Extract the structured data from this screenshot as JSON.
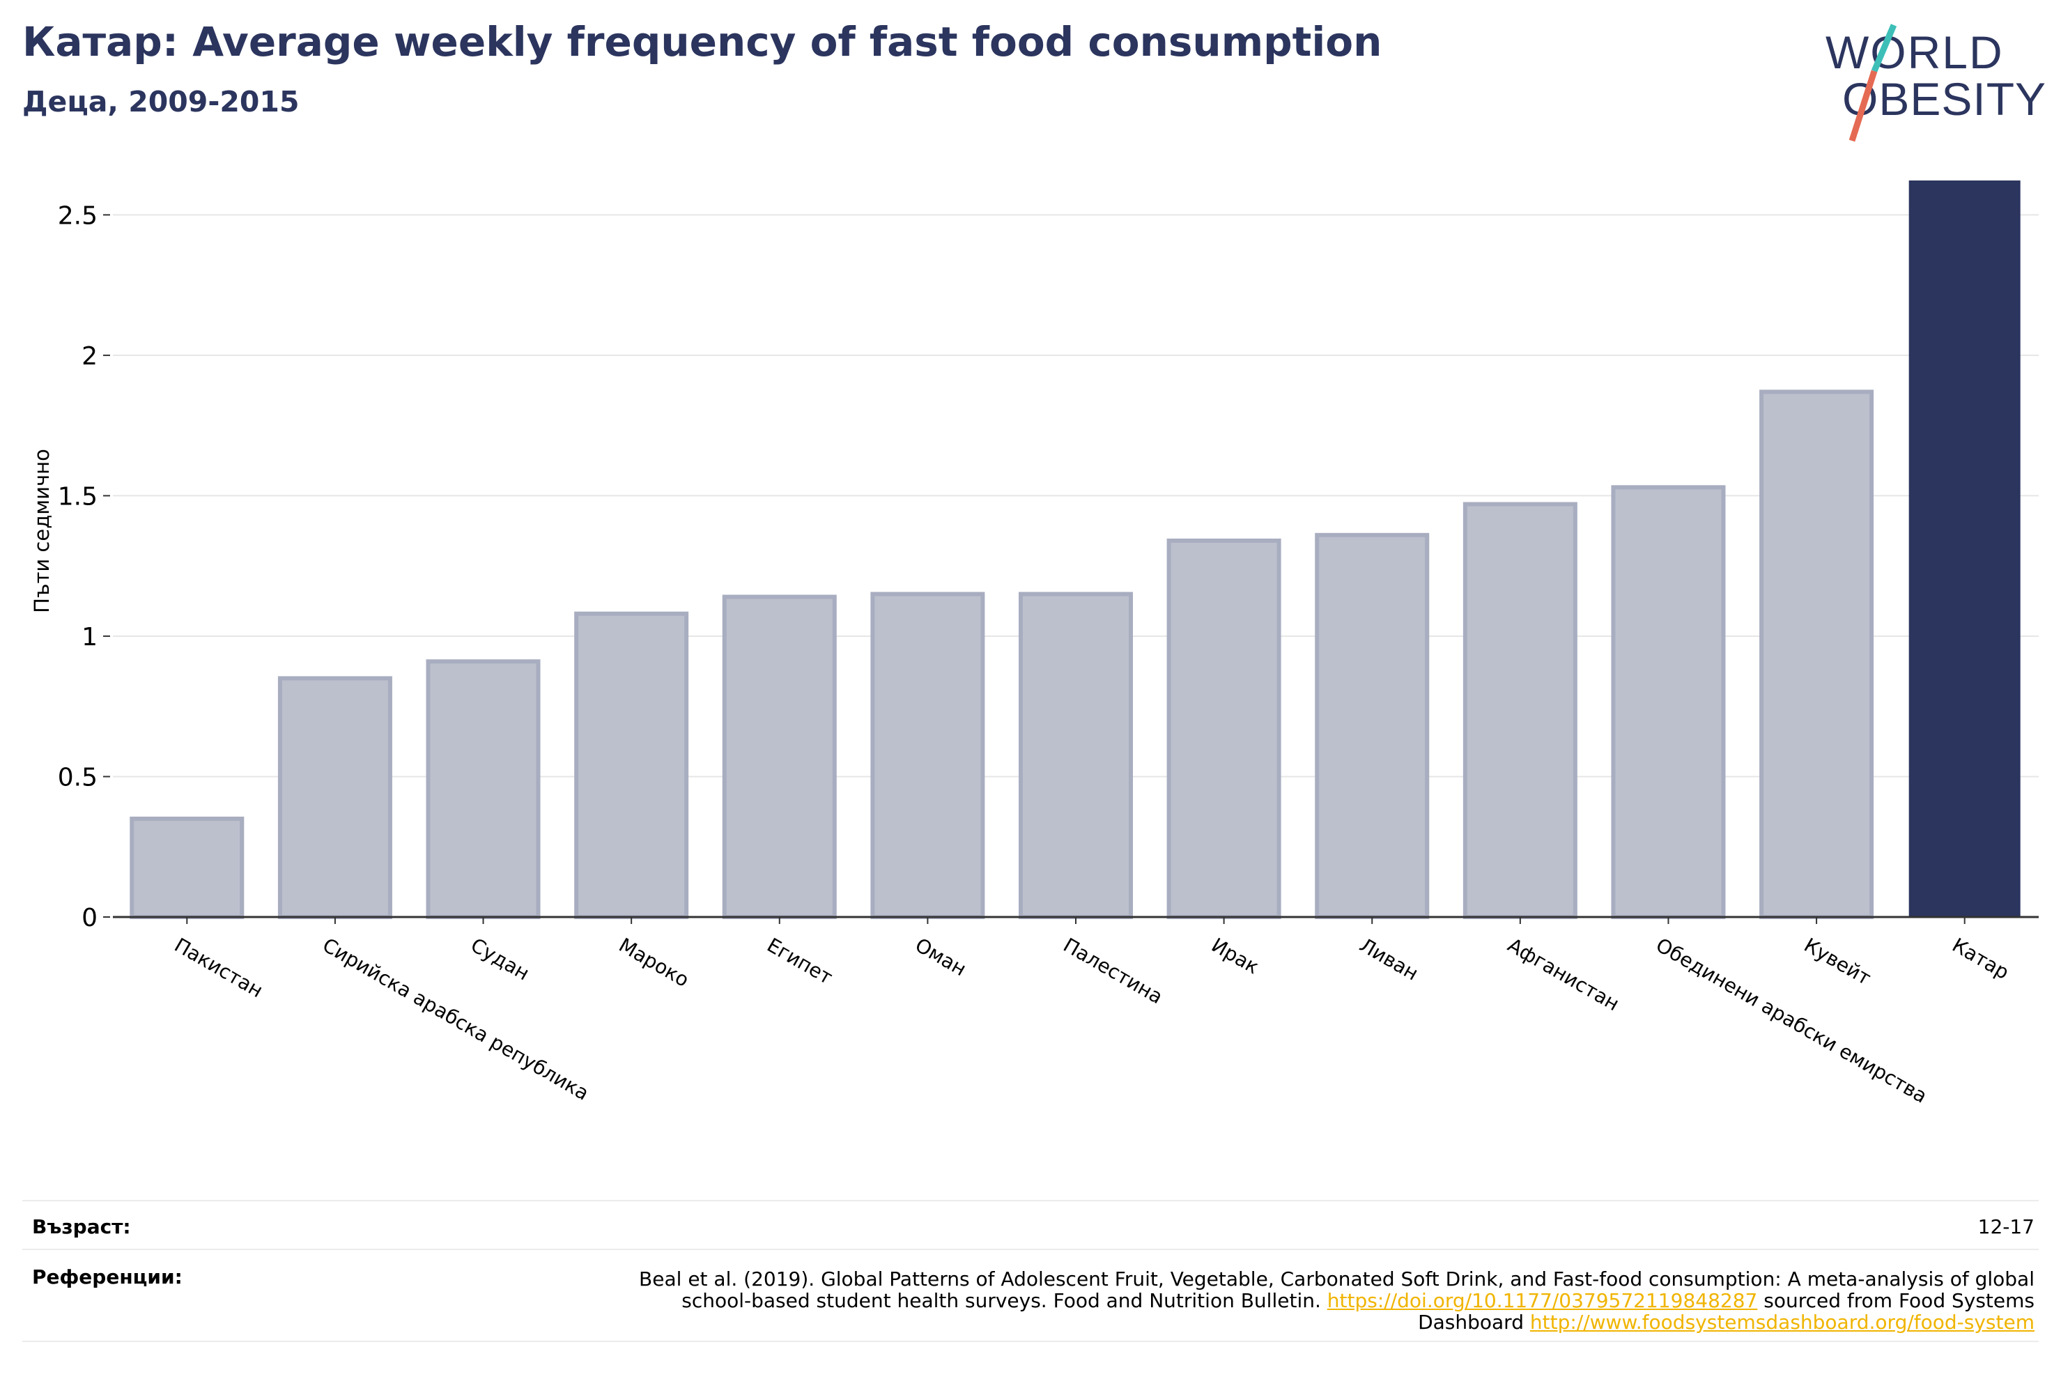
{
  "header": {
    "title": "Катар: Average weekly frequency of fast food consumption",
    "subtitle": "Деца, 2009-2015"
  },
  "logo": {
    "line1": "WORLD",
    "line2": "OBESITY",
    "colors": {
      "text": "#2b355e",
      "slash_top": "#3dbfb8",
      "slash_bottom": "#e56a54"
    }
  },
  "colors": {
    "bar_default": "#bcc0cd",
    "bar_default_edge": "#a8adc0",
    "bar_highlight": "#2b355e",
    "grid": "#e6e6e6",
    "axis": "#333333"
  },
  "chart_data": {
    "type": "bar",
    "title": "Катар: Average weekly frequency of fast food consumption",
    "subtitle": "Деца, 2009-2015",
    "ylabel": "Пъти седмично",
    "xlabel": "",
    "ylim": [
      0,
      2.62
    ],
    "yticks": [
      0,
      0.5,
      1,
      1.5,
      2,
      2.5
    ],
    "ytick_labels": [
      "0",
      "0.5",
      "1",
      "1.5",
      "2",
      "2.5"
    ],
    "grid": true,
    "highlight": "Катар",
    "categories": [
      "Пакистан",
      "Сирийска арабска република",
      "Судан",
      "Мароко",
      "Египет",
      "Оман",
      "Палестина",
      "Ирак",
      "Ливан",
      "Афганистан",
      "Обединени арабски емирства",
      "Кувейт",
      "Катар"
    ],
    "values": [
      0.35,
      0.85,
      0.91,
      1.08,
      1.14,
      1.15,
      1.15,
      1.34,
      1.36,
      1.47,
      1.53,
      1.87,
      2.62
    ]
  },
  "table": {
    "age_label": "Възраст:",
    "age_value": "12-17",
    "refs_label": "Референции:",
    "refs_text1": "Beal et al. (2019). Global Patterns of Adolescent Fruit, Vegetable, Carbonated Soft Drink, and Fast-food consumption: A meta-analysis of global school-based student health surveys. Food and Nutrition Bulletin. ",
    "refs_link1": "https://doi.org/10.1177/0379572119848287",
    "refs_text2": " sourced from Food Systems Dashboard ",
    "refs_link2": "http://www.foodsystemsdashboard.org/food-system"
  }
}
